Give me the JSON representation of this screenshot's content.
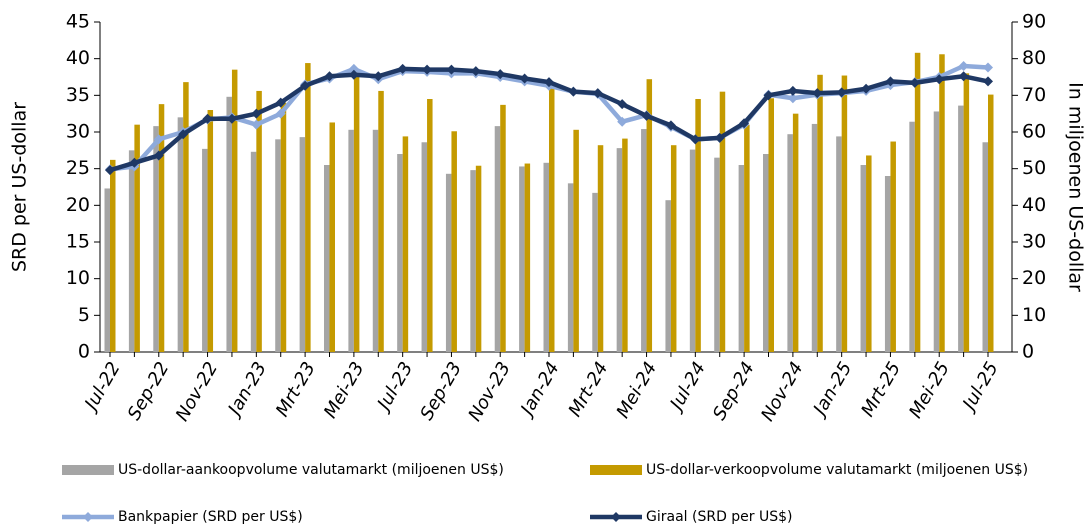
{
  "chart_data": {
    "type": "bar_line",
    "y_label": "SRD per US-dollar",
    "y2_label": "In miljoenen US-dollar",
    "categories": [
      "Jul-22",
      null,
      "Sep-22",
      null,
      "Nov-22",
      null,
      "Jan-23",
      null,
      "Mrt-23",
      null,
      "Mei-23",
      null,
      "Jul-23",
      null,
      "Sep-23",
      null,
      "Nov-23",
      null,
      "Jan-24",
      null,
      "Mrt-24",
      null,
      "Mei-24",
      null,
      "Jul-24",
      null,
      "Sep-24",
      null,
      "Nov-24",
      null,
      "Jan-25",
      null,
      "Mrt-25",
      null,
      "Mei-25",
      null,
      "Jul-25"
    ],
    "ylim": [
      0,
      45
    ],
    "yticks": [
      0,
      5,
      10,
      15,
      20,
      25,
      30,
      35,
      40,
      45
    ],
    "y2lim": [
      0,
      90
    ],
    "y2ticks": [
      0,
      10,
      20,
      30,
      40,
      50,
      60,
      70,
      80,
      90
    ],
    "legend": "bottom",
    "series": [
      {
        "name": "US-dollar-aankoopvolume valutamarkt (miljoenen US$)",
        "kind": "bar",
        "axis": "y2",
        "color": "#a5a5a5",
        "values": [
          44.6,
          55,
          61.6,
          64,
          55.4,
          69.6,
          54.6,
          58,
          58.6,
          51,
          60.6,
          60.6,
          54,
          57.2,
          48.6,
          49.6,
          61.6,
          50.6,
          51.6,
          46,
          43.4,
          55.6,
          60.8,
          41.4,
          55.2,
          53,
          51,
          54,
          59.4,
          62.2,
          58.8,
          51,
          48,
          62.8,
          65.6,
          67.2,
          57.2
        ]
      },
      {
        "name": "US-dollar-verkoopvolume valutamarkt (miljoenen US$)",
        "kind": "bar",
        "axis": "y2",
        "color": "#c49a00",
        "values": [
          52.4,
          62,
          67.6,
          73.6,
          66,
          77,
          71.2,
          68,
          78.8,
          62.6,
          76.8,
          71.2,
          58.8,
          69,
          60.2,
          50.8,
          67.4,
          51.4,
          72,
          60.6,
          56.4,
          58.2,
          74.4,
          56.4,
          69,
          71,
          62,
          69.2,
          65,
          75.6,
          75.4,
          53.6,
          57.4,
          81.6,
          81.2,
          76,
          70.2
        ]
      },
      {
        "name": "Bankpapier (SRD per US$)",
        "kind": "line",
        "color": "#8eaadb",
        "values": [
          24.9,
          25.3,
          29,
          30,
          31.7,
          32,
          31,
          32.5,
          36.5,
          37.3,
          38.6,
          37.2,
          38.3,
          38.2,
          38,
          38,
          37.5,
          36.9,
          36.3,
          35.5,
          35.2,
          31.4,
          32.3,
          30.7,
          29,
          29.2,
          31,
          35.1,
          34.6,
          35.1,
          35.3,
          35.6,
          36.4,
          36.8,
          37.5,
          39,
          38.8
        ]
      },
      {
        "name": "Giraal (SRD per US$)",
        "kind": "line",
        "color": "#1f3864",
        "values": [
          24.8,
          25.8,
          26.8,
          29.7,
          31.8,
          31.8,
          32.5,
          34,
          36.3,
          37.6,
          37.8,
          37.6,
          38.6,
          38.5,
          38.5,
          38.3,
          37.9,
          37.3,
          36.8,
          35.5,
          35.3,
          33.8,
          32.2,
          30.9,
          29,
          29.2,
          31.2,
          35,
          35.6,
          35.3,
          35.4,
          35.9,
          36.9,
          36.7,
          37.2,
          37.6,
          36.9
        ]
      }
    ]
  }
}
